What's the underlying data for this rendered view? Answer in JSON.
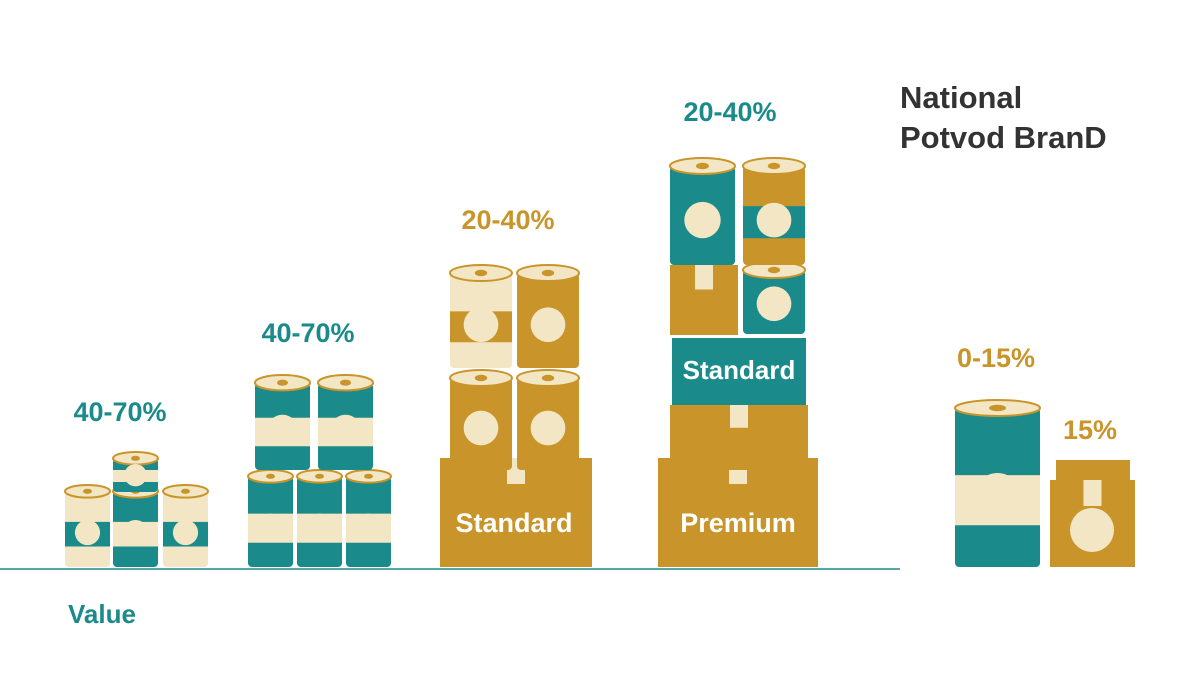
{
  "title": [
    "National",
    "Potvod BranD"
  ],
  "groups": [
    {
      "label": "40-70%"
    },
    {
      "label": "40-70%"
    },
    {
      "label": "20-40%",
      "box": "Standard"
    },
    {
      "label": "20-40%",
      "band": "Standard",
      "box": "Premium"
    },
    {
      "label": "0-15%"
    },
    {
      "label": "15%"
    }
  ],
  "axis_label": "Value"
}
